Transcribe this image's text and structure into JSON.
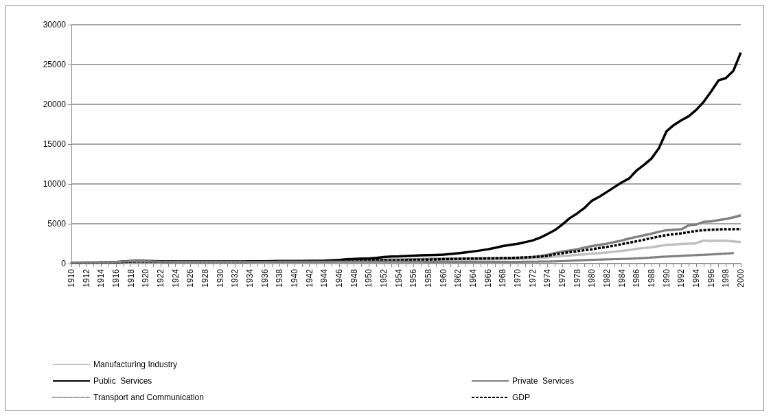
{
  "chart_data": {
    "type": "line",
    "categories": [
      "1910",
      null,
      "1912",
      null,
      "1914",
      null,
      "1916",
      null,
      "1918",
      null,
      "1920",
      null,
      "1922",
      null,
      "1924",
      null,
      "1926",
      null,
      "1928",
      null,
      "1930",
      null,
      "1932",
      null,
      "1934",
      null,
      "1936",
      null,
      "1938",
      null,
      "1940",
      null,
      "1942",
      null,
      "1944",
      null,
      "1946",
      null,
      "1948",
      null,
      "1950",
      null,
      "1952",
      null,
      "1954",
      null,
      "1956",
      null,
      "1958",
      null,
      "1960",
      null,
      "1962",
      null,
      "1964",
      null,
      "1966",
      null,
      "1968",
      null,
      "1970",
      null,
      "1972",
      null,
      "1974",
      null,
      "1976",
      null,
      "1978",
      null,
      "1980",
      null,
      "1982",
      null,
      "1984",
      null,
      "1986",
      null,
      "1988",
      null,
      "1990",
      null,
      "1992",
      null,
      "1994",
      null,
      "1996",
      null,
      "1998",
      null,
      "2000"
    ],
    "ylim": [
      0,
      30000
    ],
    "yticks": [
      0,
      5000,
      10000,
      15000,
      20000,
      25000,
      30000
    ],
    "grid": "y",
    "legend": "bottom",
    "marker": "none",
    "series": [
      {
        "name": "Manufacturing Industry",
        "color": "#c0c0c0",
        "line_style": "solid",
        "values": [
          60,
          70,
          80,
          90,
          100,
          110,
          140,
          180,
          220,
          240,
          220,
          200,
          190,
          180,
          180,
          180,
          180,
          180,
          180,
          180,
          180,
          180,
          180,
          180,
          190,
          190,
          200,
          210,
          220,
          230,
          230,
          230,
          240,
          250,
          260,
          280,
          300,
          320,
          340,
          350,
          360,
          370,
          380,
          390,
          400,
          410,
          420,
          430,
          440,
          450,
          460,
          470,
          480,
          490,
          500,
          510,
          520,
          540,
          560,
          580,
          600,
          630,
          660,
          700,
          780,
          880,
          950,
          1020,
          1100,
          1170,
          1240,
          1320,
          1400,
          1480,
          1600,
          1710,
          1850,
          1950,
          2050,
          2200,
          2340,
          2400,
          2450,
          2500,
          2550,
          2890,
          2850,
          2870,
          2860,
          2780,
          2700
        ]
      },
      {
        "name": "Private  Services",
        "color": "#808080",
        "line_style": "solid",
        "values": [
          80,
          90,
          100,
          110,
          120,
          130,
          160,
          200,
          250,
          270,
          250,
          230,
          220,
          210,
          210,
          210,
          210,
          210,
          210,
          210,
          210,
          210,
          210,
          210,
          220,
          220,
          230,
          240,
          250,
          260,
          260,
          260,
          270,
          280,
          290,
          310,
          340,
          370,
          400,
          420,
          430,
          450,
          470,
          490,
          500,
          520,
          540,
          560,
          580,
          600,
          610,
          620,
          630,
          640,
          650,
          660,
          670,
          680,
          690,
          690,
          700,
          750,
          820,
          920,
          1100,
          1320,
          1500,
          1650,
          1800,
          2000,
          2200,
          2350,
          2500,
          2700,
          2900,
          3150,
          3350,
          3550,
          3750,
          4000,
          4190,
          4250,
          4300,
          4800,
          4900,
          5230,
          5300,
          5450,
          5600,
          5800,
          6060
        ]
      },
      {
        "name": "Public  Services",
        "color": "#000000",
        "line_style": "solid",
        "values": [
          100,
          110,
          120,
          130,
          140,
          160,
          200,
          260,
          320,
          350,
          330,
          300,
          280,
          270,
          260,
          260,
          260,
          260,
          260,
          260,
          260,
          260,
          260,
          260,
          270,
          280,
          290,
          300,
          320,
          330,
          330,
          330,
          340,
          350,
          360,
          400,
          460,
          530,
          590,
          620,
          640,
          720,
          820,
          880,
          900,
          950,
          1000,
          1030,
          1060,
          1080,
          1120,
          1200,
          1300,
          1400,
          1520,
          1650,
          1800,
          1980,
          2200,
          2350,
          2480,
          2680,
          2900,
          3250,
          3700,
          4200,
          4900,
          5700,
          6300,
          7000,
          7900,
          8400,
          9000,
          9600,
          10200,
          10700,
          11700,
          12400,
          13200,
          14500,
          16600,
          17400,
          18000,
          18500,
          19300,
          20300,
          21600,
          23000,
          23300,
          24200,
          26500
        ]
      },
      {
        "name": "GDP",
        "color": "#000000",
        "line_style": "dashed",
        "values": [
          80,
          90,
          100,
          110,
          120,
          140,
          170,
          210,
          260,
          280,
          260,
          240,
          230,
          220,
          220,
          220,
          220,
          220,
          220,
          220,
          220,
          220,
          220,
          220,
          230,
          230,
          240,
          250,
          260,
          270,
          270,
          270,
          280,
          290,
          300,
          320,
          350,
          370,
          390,
          400,
          400,
          400,
          400,
          400,
          420,
          440,
          460,
          480,
          500,
          520,
          550,
          570,
          590,
          610,
          620,
          630,
          640,
          660,
          680,
          700,
          740,
          780,
          820,
          880,
          980,
          1160,
          1300,
          1420,
          1550,
          1680,
          1790,
          1950,
          2100,
          2250,
          2450,
          2620,
          2800,
          3000,
          3200,
          3400,
          3580,
          3700,
          3800,
          3950,
          4100,
          4190,
          4250,
          4290,
          4310,
          4320,
          4330
        ]
      },
      {
        "name": "Transport and Communication",
        "color": "#808080",
        "line_style": "dotted",
        "values": [
          100,
          110,
          120,
          130,
          140,
          160,
          200,
          260,
          300,
          310,
          290,
          260,
          240,
          230,
          220,
          220,
          220,
          220,
          220,
          220,
          220,
          220,
          220,
          220,
          220,
          220,
          220,
          220,
          230,
          230,
          230,
          230,
          230,
          230,
          230,
          230,
          230,
          230,
          230,
          230,
          230,
          230,
          230,
          230,
          230,
          230,
          230,
          230,
          220,
          220,
          220,
          220,
          220,
          220,
          220,
          220,
          220,
          220,
          220,
          220,
          220,
          230,
          240,
          250,
          260,
          280,
          310,
          350,
          390,
          430,
          470,
          500,
          530,
          560,
          580,
          600,
          650,
          700,
          760,
          820,
          880,
          930,
          980,
          1020,
          1060,
          1100,
          1150,
          1200,
          1260,
          1320,
          null
        ]
      }
    ]
  }
}
